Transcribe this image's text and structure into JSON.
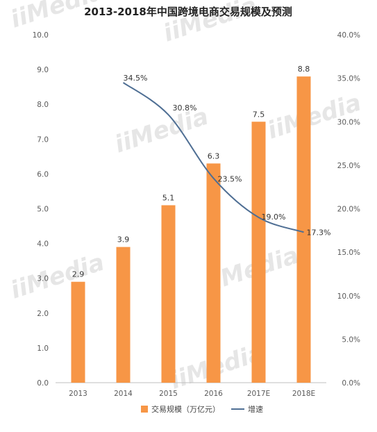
{
  "chart_data": {
    "type": "bar",
    "title": "2013-2018年中国跨境电商交易规模及预测",
    "categories": [
      "2013",
      "2014",
      "2015",
      "2016",
      "2017E",
      "2018E"
    ],
    "series": [
      {
        "name": "交易规模（万亿元）",
        "type": "bar",
        "axis": "left",
        "color": "#F79646",
        "values": [
          2.9,
          3.9,
          5.1,
          6.3,
          7.5,
          8.8
        ],
        "labels": [
          "2.9",
          "3.9",
          "5.1",
          "6.3",
          "7.5",
          "8.8"
        ]
      },
      {
        "name": "增速",
        "type": "line",
        "axis": "right",
        "color": "#4F6F94",
        "values": [
          null,
          34.5,
          30.8,
          23.5,
          19.0,
          17.3
        ],
        "labels": [
          null,
          "34.5%",
          "30.8%",
          "23.5%",
          "19.0%",
          "17.3%"
        ]
      }
    ],
    "y_left": {
      "min": 0,
      "max": 10,
      "ticks": [
        "0.0",
        "1.0",
        "2.0",
        "3.0",
        "4.0",
        "5.0",
        "6.0",
        "7.0",
        "8.0",
        "9.0",
        "10.0"
      ]
    },
    "y_right": {
      "min": 0,
      "max": 40,
      "ticks": [
        "0.0%",
        "5.0%",
        "10.0%",
        "15.0%",
        "20.0%",
        "25.0%",
        "30.0%",
        "35.0%",
        "40.0%"
      ]
    },
    "grid": false,
    "legend": "bottom-center"
  },
  "watermark": "iiMedia"
}
